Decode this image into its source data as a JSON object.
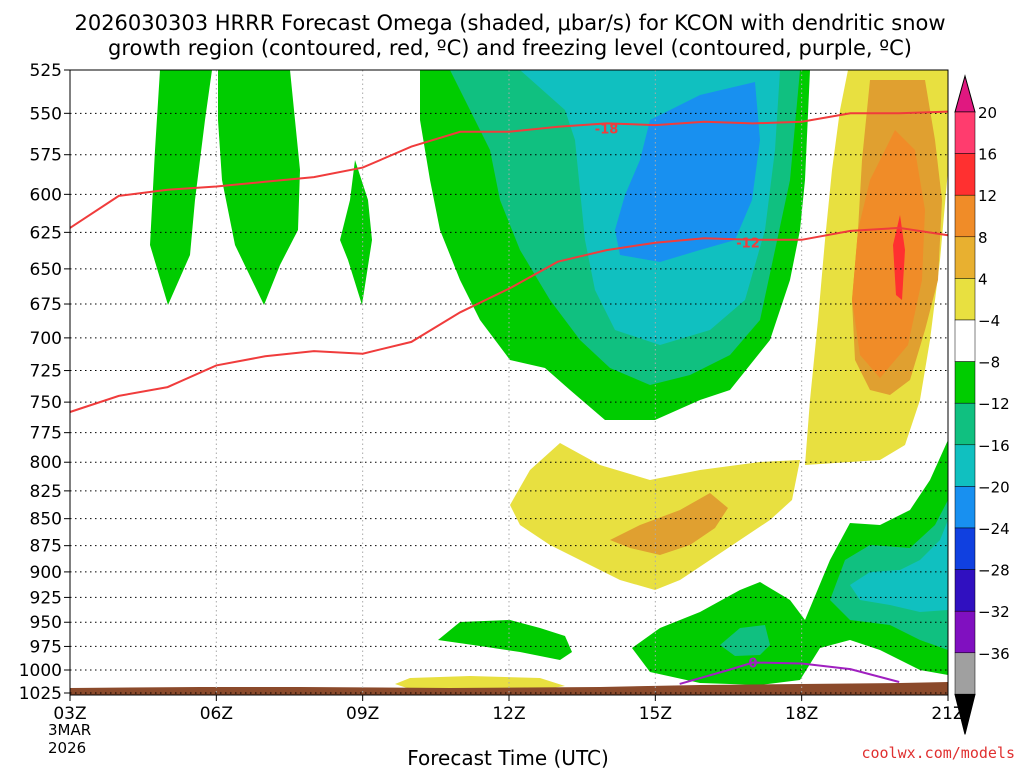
{
  "title_line1": "2026030303 HRRR Forecast Omega (shaded, μbar/s) for KCON with dendritic snow",
  "title_line2": "growth region (contoured, red, ºC) and freezing level (contoured, purple, ºC)",
  "xlabel": "Forecast Time (UTC)",
  "date_month": "3MAR",
  "date_year": "2026",
  "credit": "coolwx.com/models",
  "colors": {
    "bg": "#ffffff",
    "ground": "#8b4a2b",
    "dgz": "#f03c3c",
    "freezing": "#a020c0",
    "credit": "#e03030",
    "grid": "#000000",
    "vgrid": "#aaaaaa"
  },
  "chart_data": {
    "type": "contour",
    "x_ticks": [
      "03Z",
      "06Z",
      "09Z",
      "12Z",
      "15Z",
      "18Z",
      "21Z"
    ],
    "x_hours": [
      3,
      6,
      9,
      12,
      15,
      18,
      21
    ],
    "x_range": [
      3,
      21
    ],
    "y_ticks": [
      525,
      550,
      575,
      600,
      625,
      650,
      675,
      700,
      725,
      750,
      775,
      800,
      825,
      850,
      875,
      900,
      925,
      950,
      975,
      1000,
      1025
    ],
    "y_range": [
      525,
      1025
    ],
    "y_axis": "pressure (log), increasing downward",
    "colorbar": {
      "labels": [
        "20",
        "16",
        "12",
        "8",
        "4",
        "−4",
        "−8",
        "−12",
        "−16",
        "−20",
        "−24",
        "−28",
        "−32",
        "−36"
      ],
      "colors": [
        "#ff3c6e",
        "#ff3030",
        "#f08c28",
        "#e8b030",
        "#e8e040",
        "#ffffff",
        "#00cc00",
        "#10c080",
        "#10c0c0",
        "#1890f0",
        "#1040e0",
        "#3010c0",
        "#8010c0",
        "#a0a0a0"
      ],
      "top_arrow": "#e01880",
      "bottom_arrow": "#000000"
    },
    "contour_labels": [
      {
        "text": "-18",
        "hour": 14.0,
        "p": 559
      },
      {
        "text": "-12",
        "hour": 16.9,
        "p": 632
      },
      {
        "text": "0",
        "hour": 17.0,
        "p": 992
      }
    ],
    "dgz_upper_contour": {
      "label": "-18",
      "hours": [
        3,
        4,
        5,
        6,
        7,
        8,
        9,
        10,
        11,
        12,
        13,
        14,
        15,
        16,
        17,
        18,
        19,
        20,
        21
      ],
      "p": [
        622,
        601,
        597,
        595,
        592,
        589,
        583,
        570,
        561,
        561,
        558,
        556,
        557,
        555,
        556,
        555,
        550,
        550,
        549
      ]
    },
    "dgz_lower_contour": {
      "label": "-12",
      "hours": [
        3,
        4,
        5,
        6,
        7,
        8,
        9,
        10,
        11,
        12,
        13,
        14,
        15,
        16,
        17,
        18,
        19,
        20,
        21
      ],
      "p": [
        758,
        745,
        738,
        721,
        714,
        710,
        712,
        703,
        681,
        664,
        645,
        637,
        632,
        629,
        630,
        630,
        624,
        622,
        627
      ]
    },
    "freezing_level_contour": {
      "label": "0",
      "hours": [
        15.5,
        16.5,
        17.0,
        18.0,
        19.0,
        20.0
      ],
      "p": [
        1015,
        1000,
        992,
        993,
        999,
        1013
      ]
    },
    "omega_regions": [
      {
        "level": "-4 to -8",
        "color": "#00cc00",
        "note": "03Z-07Z columns 525-690 hPa"
      },
      {
        "level": "-4 to -8",
        "color": "#00cc00",
        "note": "09Z column 600-690 hPa"
      },
      {
        "level": "-4 to -20",
        "color": "#00cc00",
        "note": "11Z-19Z ascent 525-800 hPa, max near -20 at 15-16Z 550-650 hPa"
      },
      {
        "level": "4 to 12",
        "color": "#e8e040",
        "note": "12Z-17Z 785-940 hPa, max near 12 at 15-16Z 850-880 hPa"
      },
      {
        "level": "4 to 20",
        "color": "#e8e040",
        "note": "18Z-21Z 525-800 hPa, max near 20 at 20Z 625-680 hPa"
      },
      {
        "level": "-4 to -16",
        "color": "#00cc00",
        "note": "14Z-21Z low levels 790-1010 hPa"
      }
    ]
  }
}
